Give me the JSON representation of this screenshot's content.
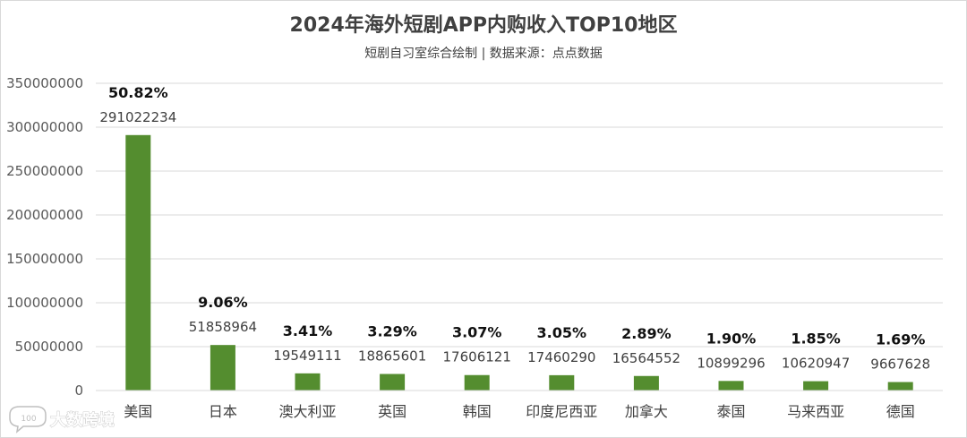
{
  "chart_data": {
    "type": "bar",
    "title": "2024年海外短剧APP内购收入TOP10地区",
    "subtitle": "短剧自习室综合绘制 | 数据来源：点点数据",
    "xlabel": "",
    "ylabel": "",
    "categories": [
      "美国",
      "日本",
      "澳大利亚",
      "英国",
      "韩国",
      "印度尼西亚",
      "加拿大",
      "泰国",
      "马来西亚",
      "德国"
    ],
    "values": [
      291022234,
      51858964,
      19549111,
      18865601,
      17606121,
      17460290,
      16564552,
      10899296,
      10620947,
      9667628
    ],
    "value_labels": [
      "291022234",
      "51858964",
      "19549111",
      "18865601",
      "17606121",
      "17460290",
      "16564552",
      "10899296",
      "10620947",
      "9667628"
    ],
    "percent_labels": [
      "50.82%",
      "9.06%",
      "3.41%",
      "3.29%",
      "3.07%",
      "3.05%",
      "2.89%",
      "1.90%",
      "1.85%",
      "1.69%"
    ],
    "yticks": [
      "0",
      "50000000",
      "100000000",
      "150000000",
      "200000000",
      "250000000",
      "300000000",
      "350000000"
    ],
    "ylim": [
      0,
      350000000
    ],
    "grid": true,
    "legend": "none",
    "bar_color": "#548D2F"
  },
  "watermark": {
    "text": "大数跨境",
    "icon": "chat-bubble-logo-icon"
  }
}
